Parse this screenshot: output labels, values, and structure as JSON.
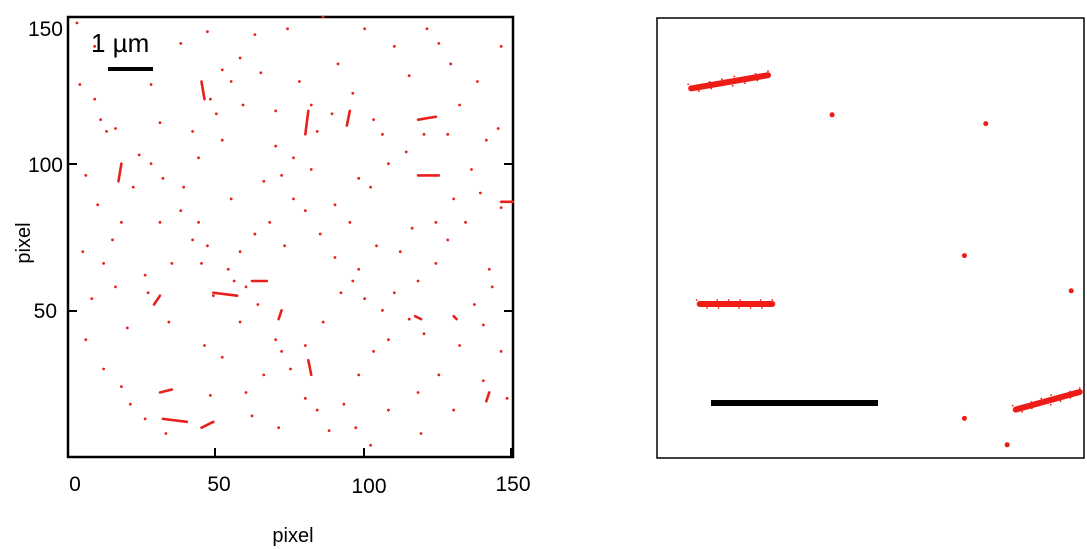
{
  "chart_data": [
    {
      "type": "scatter",
      "title": "",
      "xlabel": "pixel",
      "ylabel": "pixel",
      "xlim": [
        0,
        150
      ],
      "ylim": [
        0,
        150
      ],
      "x_ticks": [
        "0",
        "50",
        "100",
        "150"
      ],
      "y_ticks": [
        "50",
        "100",
        "150"
      ],
      "scale_bar_label": "1 µm",
      "grid": false,
      "point_color": "#e8201c",
      "points": [
        [
          3,
          148
        ],
        [
          4,
          127
        ],
        [
          9,
          122
        ],
        [
          11,
          115
        ],
        [
          13,
          111
        ],
        [
          16,
          112
        ],
        [
          24,
          103
        ],
        [
          28,
          127
        ],
        [
          31,
          114
        ],
        [
          38,
          141
        ],
        [
          47,
          145
        ],
        [
          50,
          117
        ],
        [
          52,
          108
        ],
        [
          55,
          128
        ],
        [
          59,
          120
        ],
        [
          63,
          144
        ],
        [
          65,
          131
        ],
        [
          70,
          106
        ],
        [
          72,
          96
        ],
        [
          78,
          128
        ],
        [
          82,
          120
        ],
        [
          84,
          111
        ],
        [
          89,
          117
        ],
        [
          91,
          134
        ],
        [
          96,
          124
        ],
        [
          98,
          95
        ],
        [
          103,
          115
        ],
        [
          106,
          110
        ],
        [
          110,
          140
        ],
        [
          115,
          130
        ],
        [
          125,
          141
        ],
        [
          128,
          110
        ],
        [
          132,
          120
        ],
        [
          136,
          98
        ],
        [
          141,
          108
        ],
        [
          145,
          112
        ],
        [
          146,
          85
        ],
        [
          143,
          58
        ],
        [
          142,
          64
        ],
        [
          140,
          45
        ],
        [
          137,
          52
        ],
        [
          132,
          38
        ],
        [
          125,
          28
        ],
        [
          120,
          42
        ],
        [
          115,
          47
        ],
        [
          108,
          40
        ],
        [
          103,
          36
        ],
        [
          98,
          28
        ],
        [
          93,
          18
        ],
        [
          88,
          9
        ],
        [
          80,
          20
        ],
        [
          75,
          30
        ],
        [
          70,
          40
        ],
        [
          66,
          28
        ],
        [
          60,
          22
        ],
        [
          58,
          46
        ],
        [
          56,
          60
        ],
        [
          49,
          55
        ],
        [
          45,
          66
        ],
        [
          42,
          74
        ],
        [
          38,
          84
        ],
        [
          32,
          95
        ],
        [
          28,
          100
        ],
        [
          22,
          92
        ],
        [
          18,
          80
        ],
        [
          15,
          74
        ],
        [
          12,
          66
        ],
        [
          8,
          54
        ],
        [
          6,
          40
        ],
        [
          12,
          30
        ],
        [
          18,
          24
        ],
        [
          21,
          18
        ],
        [
          26,
          13
        ],
        [
          33,
          8
        ],
        [
          40,
          12
        ],
        [
          48,
          21
        ],
        [
          52,
          34
        ],
        [
          46,
          38
        ],
        [
          34,
          46
        ],
        [
          27,
          56
        ],
        [
          35,
          66
        ],
        [
          58,
          70
        ],
        [
          63,
          76
        ],
        [
          68,
          80
        ],
        [
          76,
          88
        ],
        [
          80,
          84
        ],
        [
          85,
          76
        ],
        [
          90,
          68
        ],
        [
          96,
          60
        ],
        [
          100,
          54
        ],
        [
          106,
          50
        ],
        [
          110,
          56
        ],
        [
          118,
          60
        ],
        [
          124,
          66
        ],
        [
          128,
          74
        ],
        [
          134,
          80
        ],
        [
          139,
          90
        ],
        [
          130,
          88
        ],
        [
          124,
          80
        ],
        [
          116,
          78
        ],
        [
          112,
          70
        ],
        [
          104,
          72
        ],
        [
          98,
          64
        ],
        [
          92,
          56
        ],
        [
          86,
          46
        ],
        [
          80,
          38
        ],
        [
          72,
          36
        ],
        [
          64,
          52
        ],
        [
          60,
          58
        ],
        [
          54,
          64
        ],
        [
          47,
          72
        ],
        [
          44,
          80
        ],
        [
          39,
          92
        ],
        [
          44,
          102
        ],
        [
          42,
          111
        ],
        [
          48,
          122
        ],
        [
          52,
          132
        ],
        [
          58,
          136
        ],
        [
          70,
          118
        ],
        [
          76,
          102
        ],
        [
          82,
          98
        ],
        [
          90,
          86
        ],
        [
          95,
          80
        ],
        [
          102,
          92
        ],
        [
          108,
          100
        ],
        [
          114,
          104
        ],
        [
          120,
          110
        ],
        [
          26,
          62
        ],
        [
          20,
          44
        ],
        [
          16,
          58
        ],
        [
          10,
          86
        ],
        [
          6,
          96
        ],
        [
          5,
          70
        ],
        [
          31,
          80
        ],
        [
          55,
          88
        ],
        [
          66,
          94
        ],
        [
          73,
          72
        ],
        [
          62,
          14
        ],
        [
          71,
          10
        ],
        [
          84,
          16
        ],
        [
          97,
          10
        ],
        [
          108,
          16
        ],
        [
          118,
          22
        ],
        [
          130,
          16
        ],
        [
          140,
          26
        ],
        [
          146,
          36
        ],
        [
          148,
          20
        ],
        [
          119,
          8
        ],
        [
          102,
          4
        ],
        [
          146,
          140
        ],
        [
          138,
          128
        ],
        [
          129,
          134
        ],
        [
          121,
          146
        ],
        [
          114,
          152
        ],
        [
          100,
          146
        ],
        [
          86,
          150
        ],
        [
          74,
          146
        ],
        [
          61,
          152
        ],
        [
          14,
          154
        ],
        [
          9,
          140
        ]
      ],
      "segments": [
        [
          [
            45,
            128
          ],
          [
            46,
            122
          ]
        ],
        [
          [
            80,
            110
          ],
          [
            81,
            118
          ]
        ],
        [
          [
            94,
            113
          ],
          [
            95,
            118
          ]
        ],
        [
          [
            118,
            115
          ],
          [
            124,
            116
          ]
        ],
        [
          [
            17,
            94
          ],
          [
            18,
            100
          ]
        ],
        [
          [
            118,
            96
          ],
          [
            125,
            96
          ]
        ],
        [
          [
            146,
            87
          ],
          [
            150,
            87
          ]
        ],
        [
          [
            62,
            60
          ],
          [
            67,
            60
          ]
        ],
        [
          [
            49,
            56
          ],
          [
            57,
            55
          ]
        ],
        [
          [
            29,
            52
          ],
          [
            31,
            55
          ]
        ],
        [
          [
            71,
            47
          ],
          [
            72,
            50
          ]
        ],
        [
          [
            117,
            48
          ],
          [
            119,
            47
          ]
        ],
        [
          [
            31,
            22
          ],
          [
            35,
            23
          ]
        ],
        [
          [
            32,
            13
          ],
          [
            40,
            12
          ]
        ],
        [
          [
            45,
            10
          ],
          [
            49,
            12
          ]
        ],
        [
          [
            141,
            19
          ],
          [
            142,
            22
          ]
        ],
        [
          [
            81,
            33
          ],
          [
            82,
            28
          ]
        ],
        [
          [
            130,
            48
          ],
          [
            131,
            47
          ]
        ]
      ]
    },
    {
      "type": "scatter",
      "title": "",
      "xlabel": "",
      "ylabel": "",
      "grid": false,
      "point_color": "#ee1c16",
      "features": [
        {
          "kind": "streak",
          "x1": 0.08,
          "y1": 0.84,
          "x2": 0.26,
          "y2": 0.87
        },
        {
          "kind": "blob",
          "x": 0.41,
          "y": 0.78
        },
        {
          "kind": "blob",
          "x": 0.77,
          "y": 0.76
        },
        {
          "kind": "blob",
          "x": 0.72,
          "y": 0.46
        },
        {
          "kind": "blob",
          "x": 0.97,
          "y": 0.38
        },
        {
          "kind": "streak",
          "x1": 0.1,
          "y1": 0.35,
          "x2": 0.27,
          "y2": 0.35
        },
        {
          "kind": "blob",
          "x": 0.72,
          "y": 0.09
        },
        {
          "kind": "streak",
          "x1": 0.84,
          "y1": 0.11,
          "x2": 0.99,
          "y2": 0.15
        },
        {
          "kind": "blob",
          "x": 0.82,
          "y": 0.03
        }
      ]
    }
  ]
}
